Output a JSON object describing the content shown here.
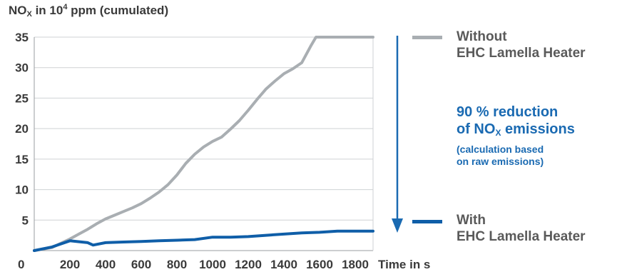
{
  "chart_data": {
    "type": "line",
    "ylabel": {
      "main": "NO",
      "sub": "X",
      "mid": " in 10",
      "sup": "4",
      "tail": " ppm (cumulated)"
    },
    "xlabel": "Time in s",
    "x_ticks": [
      200,
      400,
      600,
      800,
      1000,
      1200,
      1400,
      1600,
      1800
    ],
    "y_ticks": [
      35,
      30,
      25,
      20,
      15,
      10,
      5
    ],
    "origin_label": "0",
    "xlim": [
      0,
      1900
    ],
    "ylim": [
      0,
      35
    ],
    "grid": true,
    "series": [
      {
        "name": "Without EHC Lamella Heater",
        "color": "#a9aeb2",
        "x": [
          0,
          100,
          150,
          200,
          250,
          300,
          350,
          400,
          450,
          500,
          550,
          600,
          650,
          700,
          750,
          800,
          850,
          900,
          950,
          1000,
          1050,
          1100,
          1150,
          1200,
          1250,
          1300,
          1350,
          1400,
          1450,
          1500,
          1550,
          1580,
          1600,
          1700,
          1800,
          1900
        ],
        "y": [
          0,
          0.5,
          1.2,
          1.9,
          2.7,
          3.5,
          4.4,
          5.2,
          5.8,
          6.4,
          7.0,
          7.7,
          8.6,
          9.6,
          10.8,
          12.4,
          14.3,
          15.8,
          17.0,
          17.9,
          18.6,
          19.9,
          21.3,
          23.0,
          24.8,
          26.5,
          27.8,
          29.0,
          29.8,
          30.8,
          33.5,
          35.0,
          35.0,
          35.0,
          35.0,
          35.0
        ]
      },
      {
        "name": "With EHC Lamella Heater",
        "color": "#0f5ea8",
        "x": [
          0,
          100,
          200,
          300,
          330,
          400,
          500,
          600,
          700,
          800,
          900,
          1000,
          1100,
          1200,
          1300,
          1400,
          1500,
          1600,
          1700,
          1800,
          1900
        ],
        "y": [
          0,
          0.6,
          1.6,
          1.3,
          0.9,
          1.3,
          1.4,
          1.5,
          1.6,
          1.7,
          1.8,
          2.2,
          2.2,
          2.3,
          2.5,
          2.7,
          2.9,
          3.0,
          3.2,
          3.2,
          3.2
        ]
      }
    ],
    "legend": [
      {
        "line1": "Without",
        "line2": "EHC Lamella Heater",
        "color": "#a9aeb2"
      },
      {
        "line1": "With",
        "line2": "EHC Lamella Heater",
        "color": "#0f5ea8"
      }
    ],
    "annotation": {
      "line1": "90 % reduction",
      "line2_main": "of NO",
      "line2_sub": "X",
      "line2_tail": " emissions",
      "note1": "(calculation based",
      "note2": "on raw emissions)",
      "color": "#1a6ab2"
    }
  }
}
